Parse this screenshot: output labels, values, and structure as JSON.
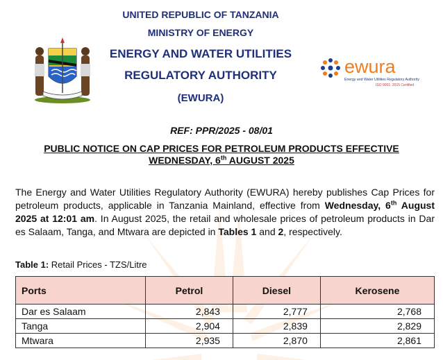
{
  "header": {
    "line1": "UNITED REPUBLIC OF TANZANIA",
    "line2": "MINISTRY OF ENERGY",
    "line3": "ENERGY AND WATER UTILITIES",
    "line4": "REGULATORY AUTHORITY",
    "line5": "(EWURA)"
  },
  "logo": {
    "name": "ewura",
    "tagline": "Energy and Water Utilities Regulatory Authority",
    "iso": "ISO 9001: 2015 Certified"
  },
  "ref": "REF: PPR/2025 - 08/01",
  "notice_title": {
    "part1": "PUBLIC NOTICE ON CAP PRICES FOR PETROLEUM PRODUCTS EFFECTIVE WEDNESDAY, 6",
    "sup": "th",
    "part2": " AUGUST 2025"
  },
  "paragraph": {
    "t1": "The Energy and Water Utilities Regulatory Authority (EWURA) hereby publishes Cap Prices for petroleum products, applicable in Tanzania Mainland, effective from ",
    "b1": "Wednesday, 6",
    "b1_sup": "th",
    "b2": " August 2025 at 12:01 am",
    "t2": ". In August 2025, the retail and wholesale prices of petroleum products in Dar es Salaam, Tanga, and Mtwara are depicted in ",
    "b3": "Tables 1",
    "t3": " and ",
    "b4": "2",
    "t4": ", respectively."
  },
  "table1": {
    "caption_bold": "Table 1:",
    "caption_rest": " Retail Prices - TZS/Litre",
    "headers": [
      "Ports",
      "Petrol",
      "Diesel",
      "Kerosene"
    ],
    "rows": [
      [
        "Dar es Salaam",
        "2,843",
        "2,777",
        "2,768"
      ],
      [
        "Tanga",
        "2,904",
        "2,839",
        "2,829"
      ],
      [
        "Mtwara",
        "2,935",
        "2,870",
        "2,861"
      ]
    ]
  },
  "colors": {
    "header_blue": "#1f2f7a",
    "table_header_bg": "#f8d4cf",
    "ewura_orange": "#f07d1e",
    "ewura_blue": "#1f3c8c"
  }
}
